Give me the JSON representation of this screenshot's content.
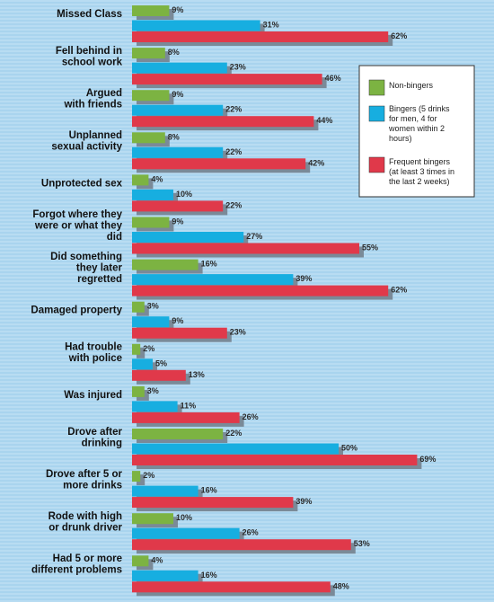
{
  "colors": {
    "background": "#a9d4ee",
    "stripe_light": "#b8dcf2",
    "non_bingers": "#7cb342",
    "bingers": "#17aee0",
    "frequent_bingers": "#e0394a",
    "shadow": "#7a8a98"
  },
  "legend": {
    "non_bingers": "Non-bingers",
    "bingers": [
      "Bingers (5 drinks",
      "for men, 4 for",
      "women within 2",
      "hours)"
    ],
    "frequent_bingers": [
      "Frequent bingers",
      "(at least 3 times in",
      "the last 2 weeks)"
    ]
  },
  "chart_data": {
    "type": "bar",
    "orientation": "horizontal",
    "value_suffix": "%",
    "xlim": [
      0,
      100
    ],
    "legend_position": "right",
    "categories": [
      [
        "Missed Class"
      ],
      [
        "Fell behind in",
        "school work"
      ],
      [
        "Argued",
        "with friends"
      ],
      [
        "Unplanned",
        "sexual activity"
      ],
      [
        "Unprotected sex"
      ],
      [
        "Forgot where they",
        "were or what they",
        "did"
      ],
      [
        "Did something",
        "they later",
        "regretted"
      ],
      [
        "Damaged property"
      ],
      [
        "Had trouble",
        "with police"
      ],
      [
        "Was injured"
      ],
      [
        "Drove after",
        "drinking"
      ],
      [
        "Drove after 5 or",
        "more drinks"
      ],
      [
        "Rode with high",
        "or drunk driver"
      ],
      [
        "Had 5 or more",
        "different problems"
      ]
    ],
    "series": [
      {
        "name": "Non-bingers",
        "values": [
          9,
          8,
          9,
          8,
          4,
          9,
          16,
          3,
          2,
          3,
          22,
          2,
          10,
          4
        ]
      },
      {
        "name": "Bingers",
        "values": [
          31,
          23,
          22,
          22,
          10,
          27,
          39,
          9,
          5,
          11,
          50,
          16,
          26,
          16
        ]
      },
      {
        "name": "Frequent bingers",
        "values": [
          62,
          46,
          44,
          42,
          22,
          55,
          62,
          23,
          13,
          26,
          69,
          39,
          53,
          48
        ]
      }
    ]
  }
}
